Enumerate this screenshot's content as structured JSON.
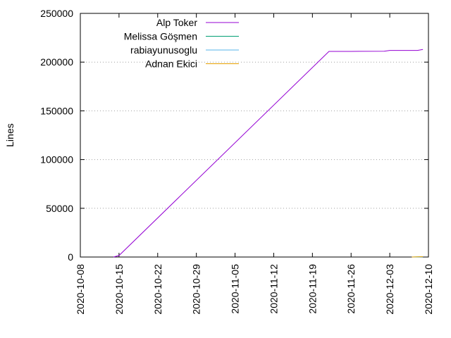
{
  "chart_data": {
    "type": "line",
    "title": "",
    "xlabel": "",
    "ylabel": "Lines",
    "x_type": "date",
    "xlim": [
      "2020-10-08",
      "2020-12-10"
    ],
    "ylim": [
      0,
      250000
    ],
    "x_ticks": [
      "2020-10-08",
      "2020-10-15",
      "2020-10-22",
      "2020-10-29",
      "2020-11-05",
      "2020-11-12",
      "2020-11-19",
      "2020-11-26",
      "2020-12-03",
      "2020-12-10"
    ],
    "y_ticks": [
      "0",
      "50000",
      "100000",
      "150000",
      "200000",
      "250000"
    ],
    "grid": true,
    "legend_position": "top-left",
    "series": [
      {
        "name": "Alp Toker",
        "color": "#9400d3",
        "points": [
          [
            "2020-10-14",
            0
          ],
          [
            "2020-10-15",
            1500
          ],
          [
            "2020-11-22",
            211000
          ],
          [
            "2020-11-26",
            211000
          ],
          [
            "2020-12-02",
            211200
          ],
          [
            "2020-12-03",
            212000
          ],
          [
            "2020-12-08",
            212000
          ],
          [
            "2020-12-09",
            213000
          ]
        ]
      },
      {
        "name": "Melissa Göşmen",
        "color": "#009e73",
        "points": [
          [
            "2020-12-07",
            0
          ],
          [
            "2020-12-09",
            300
          ]
        ]
      },
      {
        "name": "rabiayunusoglu",
        "color": "#56b4e9",
        "points": [
          [
            "2020-12-07",
            0
          ],
          [
            "2020-12-09",
            200
          ]
        ]
      },
      {
        "name": "Adnan Ekici",
        "color": "#e69f00",
        "points": [
          [
            "2020-12-07",
            0
          ],
          [
            "2020-12-09",
            400
          ]
        ]
      }
    ]
  }
}
